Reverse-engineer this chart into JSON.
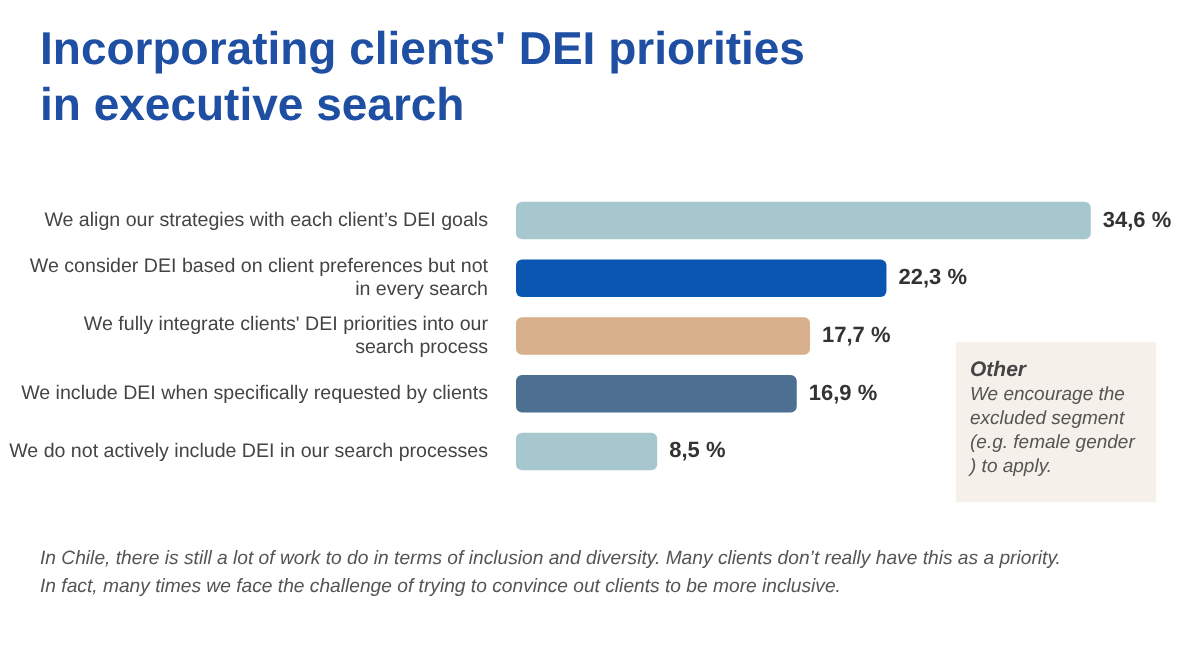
{
  "chart_data": {
    "type": "bar",
    "orientation": "horizontal",
    "title": "Incorporating clients' DEI priorities in executive search",
    "categories": [
      "We align our strategies with each client’s DEI goals",
      "We consider DEI based on client preferences but not in every search",
      "We fully integrate clients' DEI priorities into our search process",
      "We include DEI when specifically requested by clients",
      "We do not actively include DEI in our search processes"
    ],
    "values": [
      34.6,
      22.3,
      17.7,
      16.9,
      8.5
    ],
    "value_labels": [
      "34,6 %",
      "22,3 %",
      "17,7 %",
      "16,9 %",
      "8,5 %"
    ],
    "colors": [
      "#a7c7cf",
      "#0a56b0",
      "#d9b08c",
      "#4d7092",
      "#a7c7cf"
    ],
    "annotations": [
      "Other",
      "We encourage the excluded segment (e.g. female gender ) to apply.",
      "In Chile, there is still a lot of work to do in terms of inclusion and diversity. Many clients don’t really have this as a priority.\nIn fact, many times we face the challenge of trying to convince out clients to be more inclusive."
    ],
    "legend": false
  }
}
